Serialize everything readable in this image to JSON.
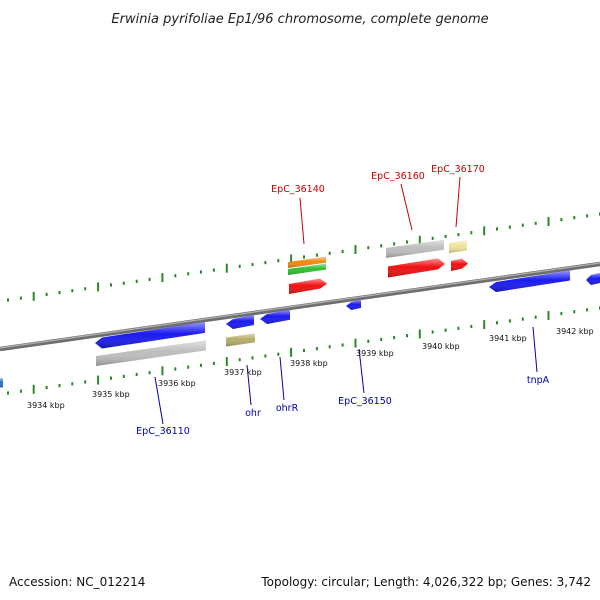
{
  "title": "Erwinia pyrifoliae Ep1/96 chromosome, complete genome",
  "footer": {
    "accession": "Accession: NC_012214",
    "summary": "Topology: circular; Length: 4,026,322 bp; Genes: 3,742"
  },
  "colors": {
    "backbone": "#7a7a7a",
    "tick": "#2a8a2a",
    "label_top": "#cc0000",
    "label_bottom": "#0000aa",
    "blue": "#1a1af0",
    "red": "#f01010",
    "gray": "#bdbdbd",
    "olive": "#b5ad6a",
    "orange": "#f08a10",
    "green": "#30c030",
    "yellow": "#eee29a"
  },
  "kbp_labels": [
    "3934 kbp",
    "3935 kbp",
    "3936 kbp",
    "3937 kbp",
    "3938 kbp",
    "3939 kbp",
    "3940 kbp",
    "3941 kbp",
    "3942 kbp"
  ],
  "top_labels": [
    "EpC_36140",
    "EpC_36160",
    "EpC_36170"
  ],
  "bottom_labels": [
    "EpC_36110",
    "ohr",
    "ohrR",
    "EpC_36150",
    "tnpA"
  ]
}
